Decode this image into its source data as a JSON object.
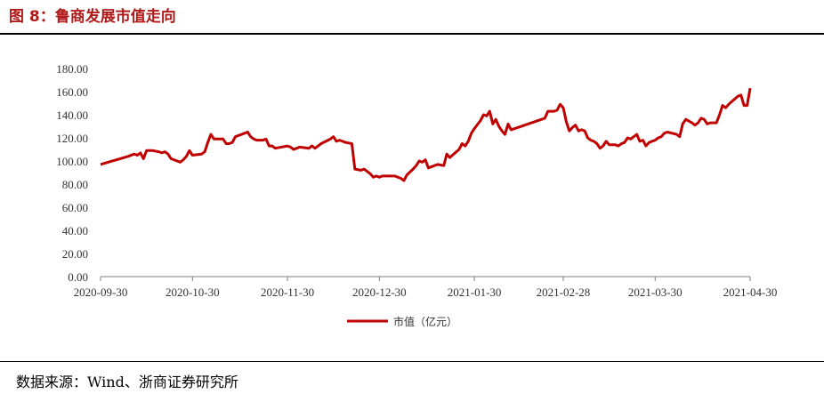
{
  "header": {
    "title": "图 8：鲁商发展市值走向"
  },
  "footer": {
    "source": "数据来源：Wind、浙商证券研究所"
  },
  "colors": {
    "line": "#c00000",
    "title": "#b01a1a",
    "axis": "#7f7f7f"
  },
  "chart_data": {
    "type": "line",
    "title": "",
    "xlabel": "",
    "ylabel": "",
    "ylim": [
      0,
      180
    ],
    "grid": false,
    "legend_position": "bottom-center",
    "y_ticks": [
      "0.00",
      "20.00",
      "40.00",
      "60.00",
      "80.00",
      "100.00",
      "120.00",
      "140.00",
      "160.00",
      "180.00"
    ],
    "x_ticks": [
      "2020-09-30",
      "2020-10-30",
      "2020-11-30",
      "2020-12-30",
      "2021-01-30",
      "2021-02-28",
      "2021-03-30",
      "2021-04-30"
    ],
    "series": [
      {
        "name": "市值（亿元）",
        "color": "#c00000",
        "points": [
          [
            "2020-09-30",
            97
          ],
          [
            "2020-10-09",
            104
          ],
          [
            "2020-10-11",
            106
          ],
          [
            "2020-10-12",
            105
          ],
          [
            "2020-10-13",
            107
          ],
          [
            "2020-10-14",
            102
          ],
          [
            "2020-10-15",
            109
          ],
          [
            "2020-10-17",
            109
          ],
          [
            "2020-10-19",
            108
          ],
          [
            "2020-10-20",
            107
          ],
          [
            "2020-10-21",
            108
          ],
          [
            "2020-10-22",
            106
          ],
          [
            "2020-10-23",
            102
          ],
          [
            "2020-10-26",
            99
          ],
          [
            "2020-10-27",
            101
          ],
          [
            "2020-10-28",
            104
          ],
          [
            "2020-10-29",
            109
          ],
          [
            "2020-10-30",
            105
          ],
          [
            "2020-11-02",
            106
          ],
          [
            "2020-11-03",
            108
          ],
          [
            "2020-11-04",
            116
          ],
          [
            "2020-11-05",
            123
          ],
          [
            "2020-11-06",
            119
          ],
          [
            "2020-11-08",
            119
          ],
          [
            "2020-11-09",
            119
          ],
          [
            "2020-11-10",
            115
          ],
          [
            "2020-11-11",
            115
          ],
          [
            "2020-11-12",
            116
          ],
          [
            "2020-11-13",
            121
          ],
          [
            "2020-11-15",
            123
          ],
          [
            "2020-11-16",
            124
          ],
          [
            "2020-11-17",
            125
          ],
          [
            "2020-11-18",
            121
          ],
          [
            "2020-11-19",
            119
          ],
          [
            "2020-11-20",
            118
          ],
          [
            "2020-11-22",
            118
          ],
          [
            "2020-11-23",
            119
          ],
          [
            "2020-11-24",
            113
          ],
          [
            "2020-11-25",
            113
          ],
          [
            "2020-11-26",
            111
          ],
          [
            "2020-11-30",
            113
          ],
          [
            "2020-12-01",
            112
          ],
          [
            "2020-12-02",
            110
          ],
          [
            "2020-12-03",
            111
          ],
          [
            "2020-12-04",
            112
          ],
          [
            "2020-12-07",
            111
          ],
          [
            "2020-12-08",
            113
          ],
          [
            "2020-12-09",
            111
          ],
          [
            "2020-12-10",
            113
          ],
          [
            "2020-12-11",
            115
          ],
          [
            "2020-12-14",
            119
          ],
          [
            "2020-12-15",
            121
          ],
          [
            "2020-12-16",
            117
          ],
          [
            "2020-12-17",
            118
          ],
          [
            "2020-12-18",
            117
          ],
          [
            "2020-12-19",
            116
          ],
          [
            "2020-12-21",
            115
          ],
          [
            "2020-12-22",
            93
          ],
          [
            "2020-12-24",
            92
          ],
          [
            "2020-12-25",
            93
          ],
          [
            "2020-12-27",
            89
          ],
          [
            "2020-12-28",
            86
          ],
          [
            "2020-12-29",
            87
          ],
          [
            "2020-12-30",
            86
          ],
          [
            "2020-12-31",
            87
          ],
          [
            "2021-01-02",
            87
          ],
          [
            "2021-01-04",
            87
          ],
          [
            "2021-01-05",
            86
          ],
          [
            "2021-01-06",
            85
          ],
          [
            "2021-01-07",
            83
          ],
          [
            "2021-01-08",
            88
          ],
          [
            "2021-01-10",
            93
          ],
          [
            "2021-01-11",
            96
          ],
          [
            "2021-01-12",
            100
          ],
          [
            "2021-01-13",
            99
          ],
          [
            "2021-01-14",
            101
          ],
          [
            "2021-01-15",
            94
          ],
          [
            "2021-01-17",
            96
          ],
          [
            "2021-01-18",
            97
          ],
          [
            "2021-01-20",
            96
          ],
          [
            "2021-01-21",
            106
          ],
          [
            "2021-01-22",
            103
          ],
          [
            "2021-01-25",
            110
          ],
          [
            "2021-01-26",
            115
          ],
          [
            "2021-01-27",
            113
          ],
          [
            "2021-01-28",
            117
          ],
          [
            "2021-01-29",
            124
          ],
          [
            "2021-01-30",
            128
          ],
          [
            "2021-02-01",
            135
          ],
          [
            "2021-02-02",
            140
          ],
          [
            "2021-02-03",
            139
          ],
          [
            "2021-02-04",
            143
          ],
          [
            "2021-02-05",
            132
          ],
          [
            "2021-02-06",
            136
          ],
          [
            "2021-02-07",
            130
          ],
          [
            "2021-02-08",
            126
          ],
          [
            "2021-02-09",
            123
          ],
          [
            "2021-02-10",
            132
          ],
          [
            "2021-02-11",
            127
          ],
          [
            "2021-02-22",
            137
          ],
          [
            "2021-02-23",
            143
          ],
          [
            "2021-02-25",
            143
          ],
          [
            "2021-02-26",
            144
          ],
          [
            "2021-02-27",
            149
          ],
          [
            "2021-02-28",
            146
          ],
          [
            "2021-03-01",
            134
          ],
          [
            "2021-03-02",
            126
          ],
          [
            "2021-03-03",
            129
          ],
          [
            "2021-03-04",
            131
          ],
          [
            "2021-03-05",
            126
          ],
          [
            "2021-03-06",
            127
          ],
          [
            "2021-03-07",
            126
          ],
          [
            "2021-03-08",
            120
          ],
          [
            "2021-03-09",
            118
          ],
          [
            "2021-03-10",
            117
          ],
          [
            "2021-03-11",
            115
          ],
          [
            "2021-03-12",
            111
          ],
          [
            "2021-03-13",
            113
          ],
          [
            "2021-03-14",
            117
          ],
          [
            "2021-03-15",
            114
          ],
          [
            "2021-03-16",
            114
          ],
          [
            "2021-03-17",
            114
          ],
          [
            "2021-03-18",
            113
          ],
          [
            "2021-03-19",
            115
          ],
          [
            "2021-03-20",
            116
          ],
          [
            "2021-03-21",
            120
          ],
          [
            "2021-03-22",
            119
          ],
          [
            "2021-03-23",
            121
          ],
          [
            "2021-03-24",
            123
          ],
          [
            "2021-03-25",
            117
          ],
          [
            "2021-03-26",
            118
          ],
          [
            "2021-03-27",
            113
          ],
          [
            "2021-03-28",
            116
          ],
          [
            "2021-03-29",
            117
          ],
          [
            "2021-03-30",
            118
          ],
          [
            "2021-03-31",
            120
          ],
          [
            "2021-04-01",
            121
          ],
          [
            "2021-04-02",
            124
          ],
          [
            "2021-04-03",
            125
          ],
          [
            "2021-04-06",
            123
          ],
          [
            "2021-04-07",
            121
          ],
          [
            "2021-04-08",
            132
          ],
          [
            "2021-04-09",
            136
          ],
          [
            "2021-04-11",
            133
          ],
          [
            "2021-04-12",
            131
          ],
          [
            "2021-04-13",
            133
          ],
          [
            "2021-04-14",
            137
          ],
          [
            "2021-04-15",
            136
          ],
          [
            "2021-04-16",
            132
          ],
          [
            "2021-04-17",
            133
          ],
          [
            "2021-04-19",
            133
          ],
          [
            "2021-04-20",
            140
          ],
          [
            "2021-04-21",
            148
          ],
          [
            "2021-04-22",
            146
          ],
          [
            "2021-04-23",
            149
          ],
          [
            "2021-04-26",
            156
          ],
          [
            "2021-04-27",
            157
          ],
          [
            "2021-04-28",
            148
          ],
          [
            "2021-04-29",
            148
          ],
          [
            "2021-04-30",
            163
          ]
        ]
      }
    ]
  }
}
